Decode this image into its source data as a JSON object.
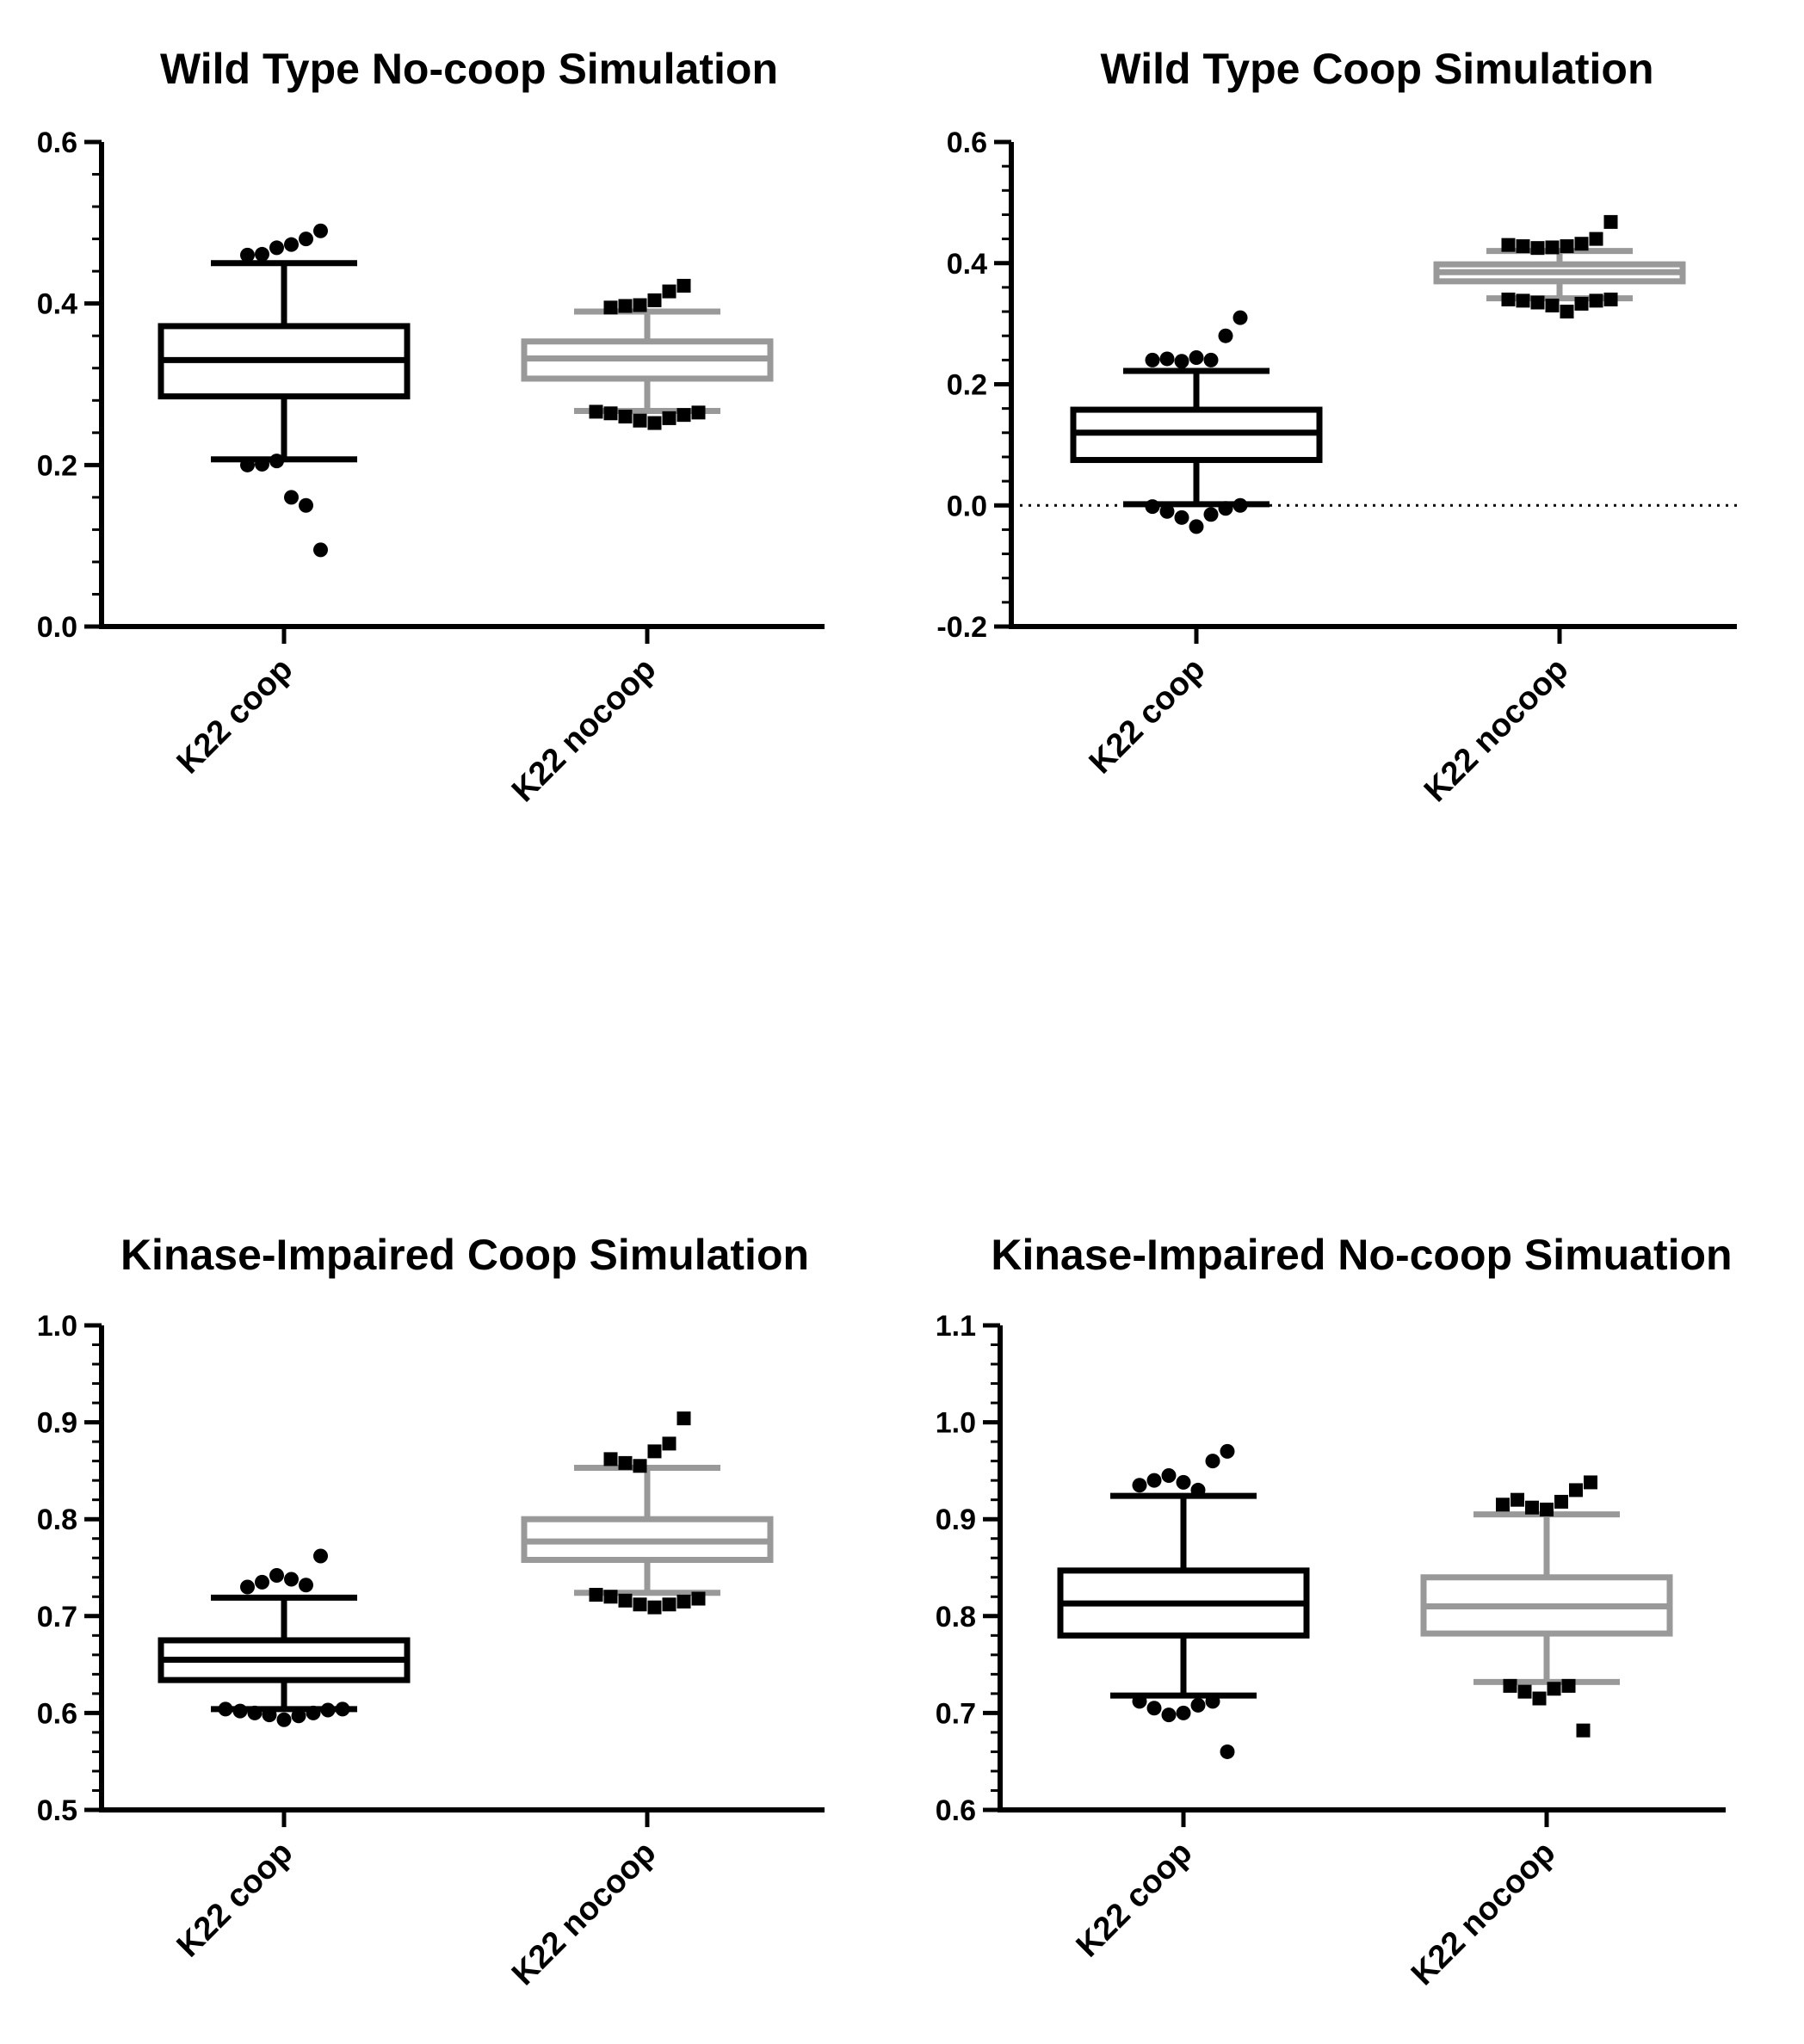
{
  "colors": {
    "coop": "#000000",
    "nocoop": "#999999",
    "outlier": "#000000",
    "axis": "#000000"
  },
  "chart_data": [
    {
      "type": "box",
      "title": "Wild Type  No-coop Simulation",
      "xlabel": "",
      "ylabel": "",
      "ylim": [
        0.0,
        0.6
      ],
      "yticks": [
        0.0,
        0.2,
        0.4,
        0.6
      ],
      "ytick_labels": [
        "0.0",
        "0.2",
        "0.4",
        "0.6"
      ],
      "zero_line": false,
      "categories": [
        "K22 coop",
        "K22 nocoop"
      ],
      "series": [
        {
          "color": "coop",
          "marker": "circle",
          "whisker_low": 0.207,
          "q1": 0.285,
          "median": 0.33,
          "q3": 0.372,
          "whisker_high": 0.45,
          "outliers": [
            0.46,
            0.461,
            0.469,
            0.473,
            0.48,
            0.49,
            0.2,
            0.201,
            0.205,
            0.16,
            0.15,
            0.095
          ]
        },
        {
          "color": "nocoop",
          "marker": "square",
          "whisker_low": 0.267,
          "q1": 0.307,
          "median": 0.332,
          "q3": 0.353,
          "whisker_high": 0.39,
          "outliers": [
            0.395,
            0.397,
            0.398,
            0.404,
            0.415,
            0.422,
            0.266,
            0.264,
            0.26,
            0.255,
            0.252,
            0.258,
            0.262,
            0.265
          ]
        }
      ]
    },
    {
      "type": "box",
      "title": "Wild Type Coop Simulation",
      "xlabel": "",
      "ylabel": "",
      "ylim": [
        -0.2,
        0.6
      ],
      "yticks": [
        -0.2,
        0.0,
        0.2,
        0.4,
        0.6
      ],
      "ytick_labels": [
        "-0.2",
        "0.0",
        "0.2",
        "0.4",
        "0.6"
      ],
      "zero_line": true,
      "categories": [
        "K22 coop",
        "K22 nocoop"
      ],
      "series": [
        {
          "color": "coop",
          "marker": "circle",
          "whisker_low": 0.002,
          "q1": 0.075,
          "median": 0.12,
          "q3": 0.158,
          "whisker_high": 0.222,
          "outliers": [
            0.24,
            0.242,
            0.238,
            0.244,
            0.24,
            0.28,
            0.31,
            -0.002,
            -0.01,
            -0.02,
            -0.035,
            -0.015,
            -0.005,
            0.0
          ]
        },
        {
          "color": "nocoop",
          "marker": "square",
          "whisker_low": 0.342,
          "q1": 0.37,
          "median": 0.385,
          "q3": 0.398,
          "whisker_high": 0.42,
          "outliers": [
            0.43,
            0.428,
            0.425,
            0.426,
            0.428,
            0.432,
            0.44,
            0.468,
            0.34,
            0.338,
            0.335,
            0.33,
            0.32,
            0.333,
            0.338,
            0.34
          ]
        }
      ]
    },
    {
      "type": "box",
      "title": "Kinase-Impaired Coop Simulation",
      "xlabel": "",
      "ylabel": "",
      "ylim": [
        0.5,
        1.0
      ],
      "yticks": [
        0.5,
        0.6,
        0.7,
        0.8,
        0.9,
        1.0
      ],
      "ytick_labels": [
        "0.5",
        "0.6",
        "0.7",
        "0.8",
        "0.9",
        "1.0"
      ],
      "zero_line": false,
      "categories": [
        "K22 coop",
        "K22 nocoop"
      ],
      "series": [
        {
          "color": "coop",
          "marker": "circle",
          "whisker_low": 0.604,
          "q1": 0.634,
          "median": 0.655,
          "q3": 0.675,
          "whisker_high": 0.719,
          "outliers": [
            0.73,
            0.735,
            0.742,
            0.738,
            0.732,
            0.762,
            0.604,
            0.602,
            0.6,
            0.598,
            0.593,
            0.597,
            0.6,
            0.603,
            0.604
          ]
        },
        {
          "color": "nocoop",
          "marker": "square",
          "whisker_low": 0.724,
          "q1": 0.758,
          "median": 0.777,
          "q3": 0.8,
          "whisker_high": 0.853,
          "outliers": [
            0.862,
            0.858,
            0.855,
            0.87,
            0.878,
            0.904,
            0.722,
            0.72,
            0.716,
            0.712,
            0.709,
            0.712,
            0.715,
            0.718
          ]
        }
      ]
    },
    {
      "type": "box",
      "title": "Kinase-Impaired No-coop Simuation",
      "xlabel": "",
      "ylabel": "",
      "ylim": [
        0.6,
        1.1
      ],
      "yticks": [
        0.6,
        0.7,
        0.8,
        0.9,
        1.0,
        1.1
      ],
      "ytick_labels": [
        "0.6",
        "0.7",
        "0.8",
        "0.9",
        "1.0",
        "1.1"
      ],
      "zero_line": false,
      "categories": [
        "K22 coop",
        "K22 nocoop"
      ],
      "series": [
        {
          "color": "coop",
          "marker": "circle",
          "whisker_low": 0.718,
          "q1": 0.78,
          "median": 0.813,
          "q3": 0.847,
          "whisker_high": 0.924,
          "outliers": [
            0.935,
            0.94,
            0.945,
            0.938,
            0.93,
            0.96,
            0.97,
            0.712,
            0.705,
            0.698,
            0.7,
            0.708,
            0.712,
            0.66
          ]
        },
        {
          "color": "nocoop",
          "marker": "square",
          "whisker_low": 0.732,
          "q1": 0.782,
          "median": 0.81,
          "q3": 0.84,
          "whisker_high": 0.905,
          "outliers": [
            0.915,
            0.92,
            0.912,
            0.91,
            0.918,
            0.93,
            0.938,
            0.728,
            0.722,
            0.715,
            0.725,
            0.728,
            0.682
          ]
        }
      ]
    }
  ]
}
